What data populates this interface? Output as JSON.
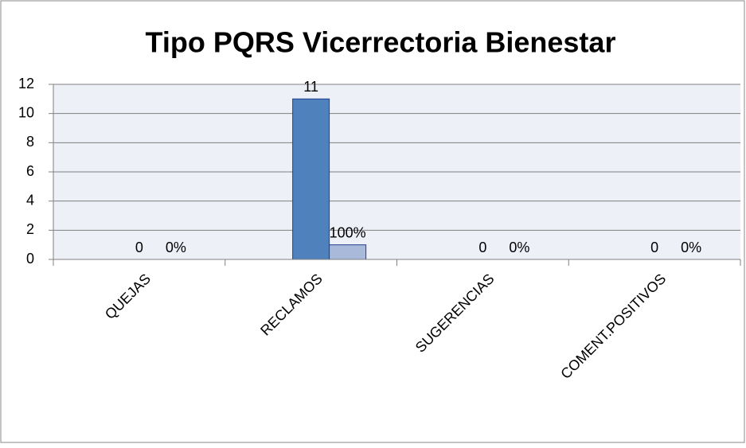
{
  "chart_data": {
    "type": "bar",
    "title": "Tipo PQRS  Vicerrectoria Bienestar",
    "categories": [
      "QUEJAS",
      "RECLAMOS",
      "SUGERENCIAS",
      "COMENT.POSITIVOS"
    ],
    "series": [
      {
        "color": "#4f81bd",
        "values": [
          0,
          11,
          0,
          0
        ]
      },
      {
        "color": "#a9b9da",
        "values": [
          0,
          1,
          0,
          0
        ],
        "value_labels": [
          "0%",
          "100%",
          "0%",
          "0%"
        ]
      }
    ],
    "ylim": [
      0,
      12
    ],
    "yticks": [
      0,
      2,
      4,
      6,
      8,
      10,
      12
    ],
    "grid": true
  }
}
